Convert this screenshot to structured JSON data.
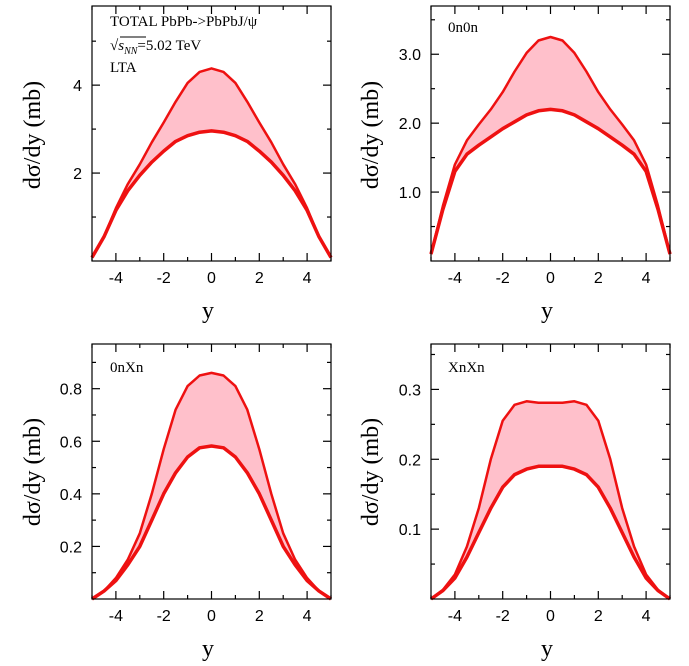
{
  "chart_data": [
    {
      "type": "area",
      "panel": "total",
      "xlabel": "y",
      "ylabel": "dσ/dy   (mb)",
      "xlim": [
        -5,
        5
      ],
      "ylim": [
        0,
        5.8
      ],
      "xticks": [
        -4,
        -2,
        0,
        2,
        4
      ],
      "xtick_labels": [
        "-4",
        "-2",
        "0",
        "2",
        "4"
      ],
      "yticks": [
        2,
        4
      ],
      "ytick_labels": [
        "2",
        "4"
      ],
      "annotations": [
        "TOTAL PbPb->PbPbJ/ψ",
        "√s_NN=5.02 TeV",
        "LTA"
      ],
      "band_color": "#ffc0cb",
      "line_color": "#ee1111",
      "x": [
        -5,
        -4.5,
        -4,
        -3.5,
        -3,
        -2.5,
        -2,
        -1.5,
        -1,
        -0.5,
        0,
        0.5,
        1,
        1.5,
        2,
        2.5,
        3,
        3.5,
        4,
        4.5,
        5
      ],
      "series": [
        {
          "values": [
            0.08,
            0.55,
            1.15,
            1.6,
            1.95,
            2.25,
            2.5,
            2.72,
            2.85,
            2.93,
            2.96,
            2.93,
            2.85,
            2.72,
            2.5,
            2.25,
            1.95,
            1.6,
            1.15,
            0.55,
            0.08
          ]
        },
        {
          "values": [
            0.08,
            0.55,
            1.2,
            1.75,
            2.2,
            2.7,
            3.15,
            3.62,
            4.05,
            4.3,
            4.38,
            4.3,
            4.05,
            3.62,
            3.15,
            2.7,
            2.2,
            1.75,
            1.2,
            0.55,
            0.08
          ]
        }
      ]
    },
    {
      "type": "area",
      "panel": "0n0n",
      "xlabel": "y",
      "ylabel": "dσ/dy   (mb)",
      "xlim": [
        -5,
        5
      ],
      "ylim": [
        0,
        3.7
      ],
      "xticks": [
        -4,
        -2,
        0,
        2,
        4
      ],
      "xtick_labels": [
        "-4",
        "-2",
        "0",
        "2",
        "4"
      ],
      "yticks": [
        1.0,
        2.0,
        3.0
      ],
      "ytick_labels": [
        "1.0",
        "2.0",
        "3.0"
      ],
      "annotations": [
        "0n0n"
      ],
      "band_color": "#ffc0cb",
      "line_color": "#ee1111",
      "x": [
        -5,
        -4.5,
        -4,
        -3.5,
        -3,
        -2.5,
        -2,
        -1.5,
        -1,
        -0.5,
        0,
        0.5,
        1,
        1.5,
        2,
        2.5,
        3,
        3.5,
        4,
        4.5,
        5
      ],
      "series": [
        {
          "values": [
            0.1,
            0.75,
            1.3,
            1.55,
            1.68,
            1.8,
            1.92,
            2.02,
            2.12,
            2.18,
            2.2,
            2.18,
            2.12,
            2.02,
            1.92,
            1.8,
            1.68,
            1.55,
            1.3,
            0.75,
            0.1
          ]
        },
        {
          "values": [
            0.1,
            0.8,
            1.4,
            1.75,
            1.98,
            2.2,
            2.45,
            2.75,
            3.02,
            3.2,
            3.25,
            3.2,
            3.02,
            2.75,
            2.45,
            2.2,
            1.98,
            1.75,
            1.4,
            0.8,
            0.1
          ]
        }
      ]
    },
    {
      "type": "area",
      "panel": "0nXn",
      "xlabel": "y",
      "ylabel": "dσ/dy   (mb)",
      "xlim": [
        -5,
        5
      ],
      "ylim": [
        0,
        0.97
      ],
      "xticks": [
        -4,
        -2,
        0,
        2,
        4
      ],
      "xtick_labels": [
        "-4",
        "-2",
        "0",
        "2",
        "4"
      ],
      "yticks": [
        0.2,
        0.4,
        0.6,
        0.8
      ],
      "ytick_labels": [
        "0.2",
        "0.4",
        "0.6",
        "0.8"
      ],
      "annotations": [
        "0nXn"
      ],
      "band_color": "#ffc0cb",
      "line_color": "#ee1111",
      "x": [
        -5,
        -4.5,
        -4,
        -3.5,
        -3,
        -2.5,
        -2,
        -1.5,
        -1,
        -0.5,
        0,
        0.5,
        1,
        1.5,
        2,
        2.5,
        3,
        3.5,
        4,
        4.5,
        5
      ],
      "series": [
        {
          "values": [
            0.0,
            0.03,
            0.07,
            0.13,
            0.2,
            0.3,
            0.4,
            0.48,
            0.54,
            0.575,
            0.582,
            0.575,
            0.54,
            0.48,
            0.4,
            0.3,
            0.2,
            0.13,
            0.07,
            0.03,
            0.0
          ]
        },
        {
          "values": [
            0.0,
            0.03,
            0.08,
            0.15,
            0.25,
            0.4,
            0.57,
            0.72,
            0.81,
            0.85,
            0.86,
            0.85,
            0.81,
            0.72,
            0.57,
            0.4,
            0.25,
            0.15,
            0.08,
            0.03,
            0.0
          ]
        }
      ]
    },
    {
      "type": "area",
      "panel": "XnXn",
      "xlabel": "y",
      "ylabel": "dσ/dy   (mb)",
      "xlim": [
        -5,
        5
      ],
      "ylim": [
        0,
        0.365
      ],
      "xticks": [
        -4,
        -2,
        0,
        2,
        4
      ],
      "xtick_labels": [
        "-4",
        "-2",
        "0",
        "2",
        "4"
      ],
      "yticks": [
        0.1,
        0.2,
        0.3
      ],
      "ytick_labels": [
        "0.1",
        "0.2",
        "0.3"
      ],
      "annotations": [
        "XnXn"
      ],
      "band_color": "#ffc0cb",
      "line_color": "#ee1111",
      "x": [
        -5,
        -4.5,
        -4,
        -3.5,
        -3,
        -2.5,
        -2,
        -1.5,
        -1,
        -0.5,
        0,
        0.5,
        1,
        1.5,
        2,
        2.5,
        3,
        3.5,
        4,
        4.5,
        5
      ],
      "series": [
        {
          "values": [
            0.0,
            0.012,
            0.03,
            0.06,
            0.095,
            0.13,
            0.16,
            0.178,
            0.186,
            0.19,
            0.19,
            0.19,
            0.186,
            0.178,
            0.16,
            0.13,
            0.095,
            0.06,
            0.03,
            0.012,
            0.0
          ]
        },
        {
          "values": [
            0.0,
            0.013,
            0.035,
            0.075,
            0.13,
            0.2,
            0.255,
            0.278,
            0.283,
            0.281,
            0.281,
            0.281,
            0.283,
            0.278,
            0.255,
            0.2,
            0.13,
            0.075,
            0.035,
            0.013,
            0.0
          ]
        }
      ]
    }
  ]
}
